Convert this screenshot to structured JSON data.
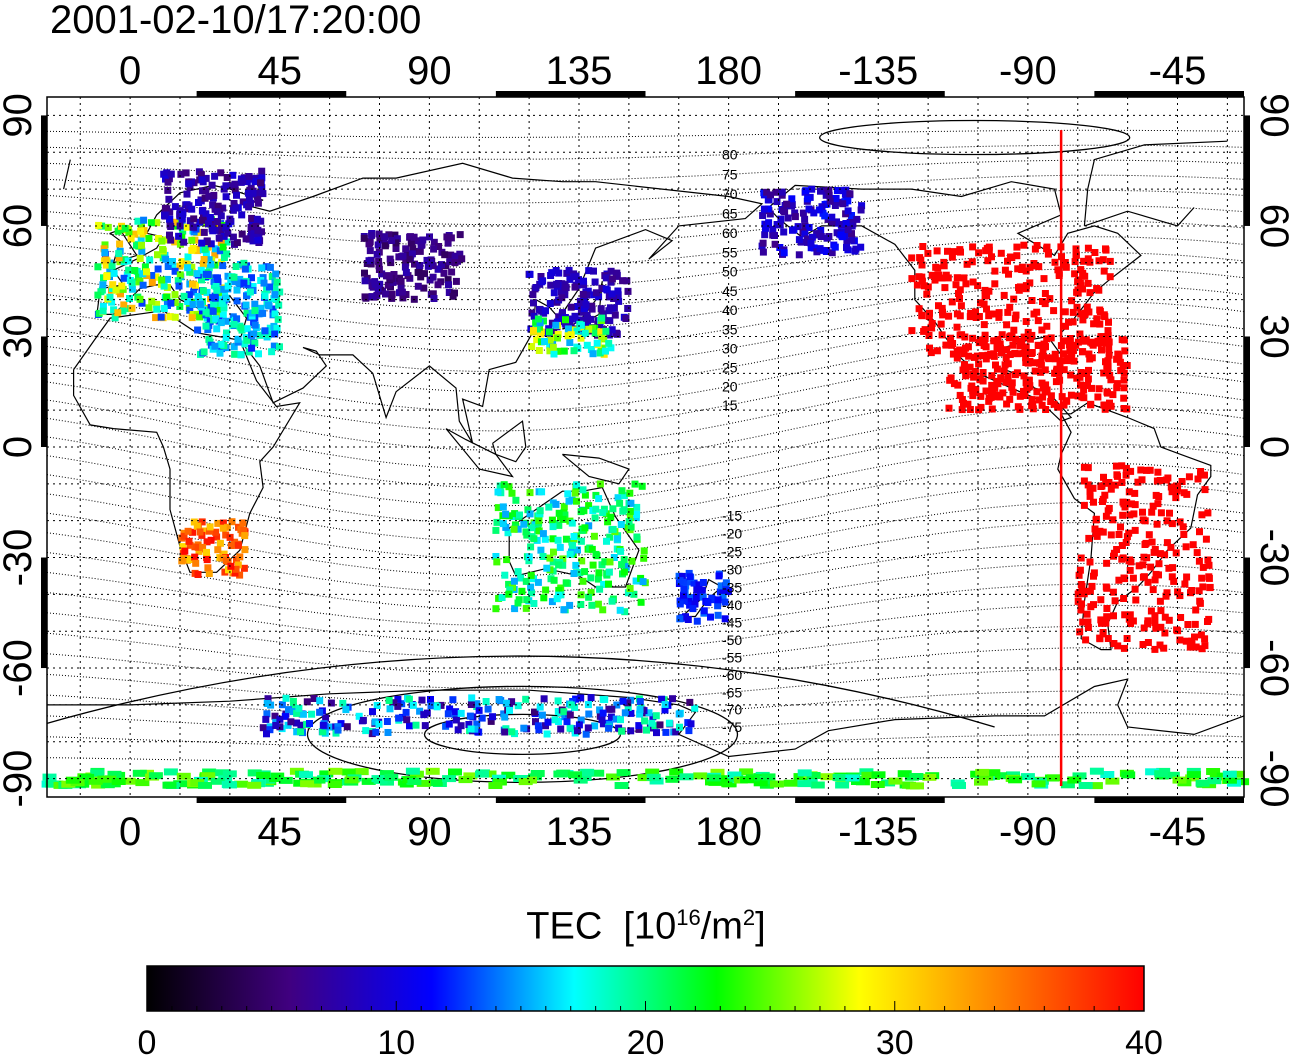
{
  "title": "2001-02-10/17:20:00",
  "map": {
    "projection": "equirectangular",
    "lon_range": [
      -25,
      335
    ],
    "lat_range": [
      -95,
      95
    ],
    "top_lon_ticks": [
      "0",
      "45",
      "90",
      "135",
      "180",
      "-135",
      "-90",
      "-45"
    ],
    "bottom_lon_ticks": [
      "0",
      "45",
      "90",
      "135",
      "180",
      "-135",
      "-90",
      "-45"
    ],
    "left_lat_ticks": [
      "90",
      "60",
      "30",
      "0",
      "-30",
      "-60",
      "-90"
    ],
    "right_lat_ticks": [
      "90",
      "60",
      "30",
      "0",
      "-30",
      "-60",
      "-90"
    ],
    "grid": true,
    "terminator_longitude": -80,
    "terminator_color": "#ff0000",
    "magnetic_latitude_labels": [
      "80",
      "75",
      "70",
      "65",
      "60",
      "55",
      "50",
      "45",
      "40",
      "35",
      "30",
      "25",
      "20",
      "15",
      "-15",
      "-20",
      "-25",
      "-30",
      "-35",
      "-40",
      "-45",
      "-50",
      "-55",
      "-60",
      "-65",
      "-70",
      "-75"
    ]
  },
  "colorbar": {
    "label": "TEC",
    "unit_base": "[10",
    "unit_sup": "16",
    "unit_mid": "/m",
    "unit_sup2": "2",
    "unit_end": "]",
    "min": 0,
    "max": 40,
    "ticks": [
      "0",
      "10",
      "20",
      "30",
      "40"
    ],
    "colormap": [
      "#000000",
      "#400080",
      "#0000ff",
      "#00ffff",
      "#00ff00",
      "#ffff00",
      "#ff8000",
      "#ff0000"
    ]
  },
  "chart_data": {
    "type": "heatmap",
    "quantity": "TEC",
    "regions": [
      {
        "lat_range": [
          35,
          62
        ],
        "lon_range": [
          -10,
          30
        ],
        "tec": [
          12,
          33
        ]
      },
      {
        "lat_range": [
          55,
          75
        ],
        "lon_range": [
          10,
          40
        ],
        "tec": [
          5,
          10
        ]
      },
      {
        "lat_range": [
          25,
          50
        ],
        "lon_range": [
          20,
          45
        ],
        "tec": [
          12,
          20
        ]
      },
      {
        "lat_range": [
          40,
          58
        ],
        "lon_range": [
          70,
          100
        ],
        "tec": [
          4,
          8
        ]
      },
      {
        "lat_range": [
          30,
          48
        ],
        "lon_range": [
          120,
          150
        ],
        "tec": [
          6,
          10
        ]
      },
      {
        "lat_range": [
          25,
          35
        ],
        "lon_range": [
          120,
          145
        ],
        "tec": [
          15,
          30
        ]
      },
      {
        "lat_range": [
          -35,
          -20
        ],
        "lon_range": [
          15,
          35
        ],
        "tec": [
          30,
          40
        ]
      },
      {
        "lat_range": [
          -45,
          -10
        ],
        "lon_range": [
          110,
          155
        ],
        "tec": [
          15,
          25
        ]
      },
      {
        "lat_range": [
          -48,
          -34
        ],
        "lon_range": [
          165,
          180
        ],
        "tec": [
          10,
          14
        ]
      },
      {
        "lat_range": [
          25,
          55
        ],
        "lon_range": [
          -125,
          -65
        ],
        "tec": [
          40,
          40
        ]
      },
      {
        "lat_range": [
          10,
          30
        ],
        "lon_range": [
          -115,
          -60
        ],
        "tec": [
          40,
          40
        ]
      },
      {
        "lat_range": [
          -55,
          -5
        ],
        "lon_range": [
          -75,
          -35
        ],
        "tec": [
          40,
          40
        ]
      },
      {
        "lat_range": [
          52,
          70
        ],
        "lon_range": [
          -170,
          -140
        ],
        "tec": [
          6,
          12
        ]
      },
      {
        "lat_range": [
          -78,
          -68
        ],
        "lon_range": [
          40,
          170
        ],
        "tec": [
          5,
          20
        ]
      },
      {
        "lat_range": [
          -92,
          -88
        ],
        "lon_range": [
          -25,
          335
        ],
        "tec": [
          18,
          26
        ]
      }
    ]
  }
}
